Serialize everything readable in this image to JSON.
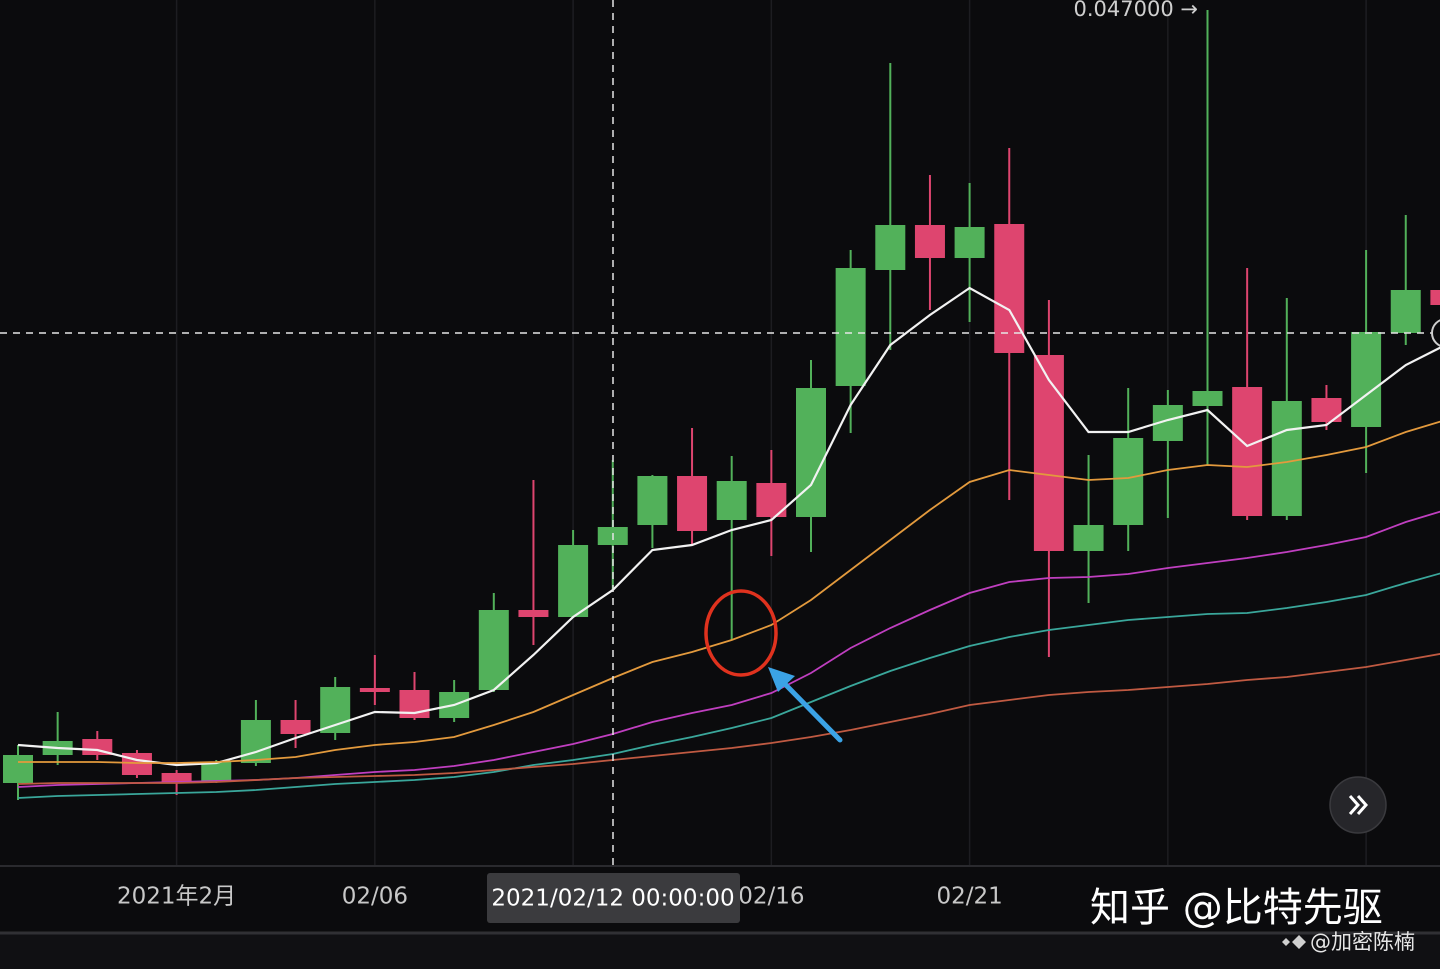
{
  "chart_data": {
    "type": "candlestick",
    "categories": [
      null,
      null,
      null,
      null,
      "2021年2月",
      null,
      null,
      null,
      null,
      "02/06",
      null,
      null,
      null,
      null,
      null,
      null,
      null,
      null,
      null,
      "02/16",
      null,
      null,
      null,
      null,
      "02/21",
      null,
      null,
      null,
      null,
      null,
      null,
      null,
      null,
      null,
      null,
      null,
      null
    ],
    "open": [
      0.00835,
      0.00975,
      0.01055,
      0.00985,
      0.00885,
      0.00845,
      0.00935,
      0.0115,
      0.01085,
      0.0131,
      0.013,
      0.0116,
      0.013,
      0.017,
      0.01665,
      0.02025,
      0.02125,
      0.0237,
      0.0215,
      0.02335,
      0.02165,
      0.0282,
      0.034,
      0.03625,
      0.0346,
      0.0363,
      0.02975,
      0.01995,
      0.02125,
      0.02545,
      0.0272,
      0.02815,
      0.0217,
      0.0276,
      0.02615,
      0.03085,
      0.033
    ],
    "high": [
      0.01025,
      0.0119,
      0.01095,
      0.01,
      0.009,
      0.0095,
      0.0125,
      0.0125,
      0.01365,
      0.01475,
      0.0139,
      0.0135,
      0.01785,
      0.0235,
      0.021,
      0.0245,
      0.02375,
      0.0261,
      0.0247,
      0.025,
      0.0295,
      0.035,
      0.04435,
      0.03875,
      0.03835,
      0.0401,
      0.0325,
      0.02475,
      0.0281,
      0.028,
      0.047,
      0.0341,
      0.0326,
      0.02825,
      0.035,
      0.03675,
      0.0335
    ],
    "low": [
      0.0075,
      0.00925,
      0.0095,
      0.0086,
      0.00775,
      0.00835,
      0.0092,
      0.0101,
      0.0105,
      0.01225,
      0.0115,
      0.0114,
      0.0129,
      0.01525,
      0.0166,
      0.018,
      0.0201,
      0.02025,
      0.0155,
      0.0197,
      0.0199,
      0.02585,
      0.03,
      0.032,
      0.0314,
      0.0225,
      0.01465,
      0.01735,
      0.01995,
      0.0216,
      0.02425,
      0.0215,
      0.0215,
      0.026,
      0.02385,
      0.03025,
      0.032
    ],
    "close": [
      0.00975,
      0.01045,
      0.00975,
      0.00875,
      0.00835,
      0.0094,
      0.0115,
      0.0108,
      0.01315,
      0.0129,
      0.0116,
      0.0129,
      0.017,
      0.01665,
      0.02025,
      0.02115,
      0.0237,
      0.02095,
      0.02345,
      0.02165,
      0.0281,
      0.0341,
      0.03625,
      0.0346,
      0.03615,
      0.02985,
      0.01995,
      0.02125,
      0.0256,
      0.02725,
      0.02795,
      0.0217,
      0.02745,
      0.0264,
      0.0309,
      0.033,
      0.03225
    ],
    "up_color": "#52b15a",
    "down_color": "#de456f",
    "ylim": [
      0.00425,
      0.0475
    ],
    "grid": true,
    "lines": [
      {
        "color": "#f2f2f2",
        "values": [
          0.01025,
          0.0101,
          0.01,
          0.0095,
          0.00925,
          0.00935,
          0.0099,
          0.0106,
          0.01125,
          0.0119,
          0.01185,
          0.01225,
          0.013,
          0.01475,
          0.01665,
          0.018,
          0.02,
          0.02025,
          0.021,
          0.0215,
          0.02325,
          0.02725,
          0.03025,
          0.03175,
          0.0331,
          0.032,
          0.0285,
          0.0259,
          0.0259,
          0.0265,
          0.027,
          0.0252,
          0.026,
          0.02625,
          0.02775,
          0.02925,
          0.03025
        ]
      },
      {
        "color": "#e39a3d",
        "values": [
          0.0094,
          0.0094,
          0.0094,
          0.00935,
          0.00935,
          0.0094,
          0.0095,
          0.00965,
          0.01,
          0.01025,
          0.0104,
          0.01065,
          0.01125,
          0.0119,
          0.01275,
          0.0136,
          0.0144,
          0.0149,
          0.0155,
          0.01625,
          0.0175,
          0.019,
          0.0205,
          0.022,
          0.0234,
          0.024,
          0.02375,
          0.0235,
          0.0236,
          0.024,
          0.02425,
          0.02415,
          0.0244,
          0.02475,
          0.02515,
          0.0259,
          0.0265
        ]
      },
      {
        "color": "#c03fc0",
        "values": [
          0.00815,
          0.00825,
          0.0083,
          0.00835,
          0.0084,
          0.00845,
          0.0085,
          0.0086,
          0.00875,
          0.0089,
          0.009,
          0.0092,
          0.0095,
          0.0099,
          0.0103,
          0.0108,
          0.0114,
          0.01185,
          0.01225,
          0.01285,
          0.01385,
          0.0151,
          0.0161,
          0.017,
          0.01785,
          0.0184,
          0.0186,
          0.01865,
          0.0188,
          0.0191,
          0.01935,
          0.0196,
          0.0199,
          0.02025,
          0.02065,
          0.0214,
          0.022
        ]
      },
      {
        "color": "#3aa79b",
        "values": [
          0.0076,
          0.0077,
          0.00775,
          0.0078,
          0.00785,
          0.0079,
          0.008,
          0.00815,
          0.0083,
          0.0084,
          0.0085,
          0.00865,
          0.0089,
          0.00925,
          0.0095,
          0.0098,
          0.01025,
          0.01065,
          0.0111,
          0.0116,
          0.0124,
          0.0132,
          0.01395,
          0.0146,
          0.0152,
          0.01565,
          0.016,
          0.01625,
          0.0165,
          0.01665,
          0.0168,
          0.01685,
          0.0171,
          0.0174,
          0.01775,
          0.01835,
          0.0189
        ]
      },
      {
        "color": "#c05a42",
        "values": [
          0.0083,
          0.00835,
          0.00835,
          0.00835,
          0.00835,
          0.0084,
          0.0085,
          0.0086,
          0.00865,
          0.0087,
          0.00875,
          0.00885,
          0.009,
          0.00915,
          0.0093,
          0.0095,
          0.0097,
          0.0099,
          0.0101,
          0.01035,
          0.01065,
          0.011,
          0.0114,
          0.0118,
          0.01225,
          0.0125,
          0.01275,
          0.0129,
          0.013,
          0.01315,
          0.0133,
          0.0135,
          0.01365,
          0.0139,
          0.01415,
          0.0145,
          0.01485
        ]
      }
    ],
    "max_label": "0.047000 →",
    "crosshair_label": "2021/02/12 00:00:00"
  },
  "watermarks": [
    "知乎 @比特先驱",
    "@加密陈楠"
  ]
}
